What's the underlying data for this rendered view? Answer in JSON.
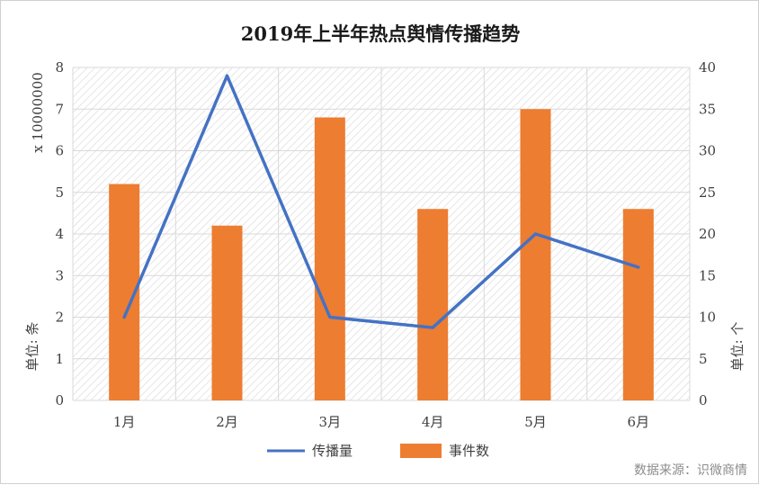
{
  "chart_data": {
    "type": "bar",
    "title": "2019年上半年热点舆情传播趋势",
    "categories": [
      "1月",
      "2月",
      "3月",
      "4月",
      "5月",
      "6月"
    ],
    "series": [
      {
        "name": "传播量",
        "kind": "line",
        "axis": "left",
        "color": "#4472C4",
        "values": [
          2.0,
          7.8,
          2.0,
          1.75,
          4.0,
          3.2
        ]
      },
      {
        "name": "事件数",
        "kind": "bar",
        "axis": "right",
        "color": "#ED7D31",
        "values": [
          26,
          21,
          34,
          23,
          35,
          23
        ]
      }
    ],
    "y_left": {
      "scale_label": "x 10000000",
      "unit_label": "单位: 条",
      "ylim": [
        0,
        8
      ],
      "ticks": [
        "0",
        "1",
        "2",
        "3",
        "4",
        "5",
        "6",
        "7",
        "8"
      ]
    },
    "y_right": {
      "unit_label": "单位: 个",
      "ylim": [
        0,
        40
      ],
      "ticks": [
        "0",
        "5",
        "10",
        "15",
        "20",
        "25",
        "30",
        "35",
        "40"
      ]
    },
    "grid": true,
    "legend_position": "bottom"
  },
  "source_note": "数据来源：识微商情"
}
